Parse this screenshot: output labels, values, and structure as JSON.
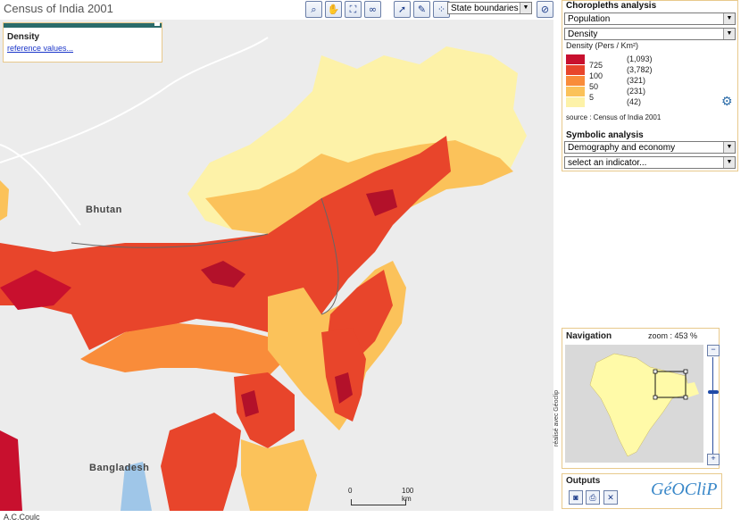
{
  "app": {
    "title": "Census of India 2001",
    "credit": "A.C.Coulc",
    "vertical_credit": "réalisé avec Géoclip"
  },
  "toolbar": {
    "icons": [
      "zoom-icon",
      "pan-hand-icon",
      "full-extent-icon",
      "binoculars-icon",
      "pointer-icon",
      "edit-icon",
      "scatter-icon",
      "no-layer-icon"
    ],
    "layer_select": "State boundaries"
  },
  "map": {
    "labels": {
      "bhutan": "Bhutan",
      "bangladesh": "Bangladesh"
    },
    "info_box": {
      "title": "Density",
      "link": "reference values..."
    },
    "scale": {
      "zero": "0",
      "max": "100 km"
    }
  },
  "choropleth": {
    "heading": "Choropleths analysis",
    "theme_select": "Population",
    "indicator_select": "Density",
    "unit_label": "Density (Pers / Km²)",
    "classes": [
      {
        "threshold": "725",
        "count": "(1,093)",
        "color": "#c8102e"
      },
      {
        "threshold": "100",
        "count": "(3,782)",
        "color": "#e8452b"
      },
      {
        "threshold": "50",
        "count": "(321)",
        "color": "#f98c3a"
      },
      {
        "threshold": "5",
        "count": "(231)",
        "color": "#fbc25a"
      },
      {
        "threshold": "",
        "count": "(42)",
        "color": "#fdf2a8"
      }
    ],
    "source": "source : Census of India 2001"
  },
  "symbolic": {
    "heading": "Symbolic analysis",
    "theme_select": "Demography and economy",
    "indicator_select": "select an indicator..."
  },
  "navigation": {
    "heading": "Navigation",
    "zoom_label": "zoom : 453 %"
  },
  "outputs": {
    "heading": "Outputs",
    "logo_text": "GéOCliP"
  },
  "colors": {
    "background": "#ececec",
    "panel_border": "#e8c98c",
    "accent": "#2a6b6b"
  }
}
